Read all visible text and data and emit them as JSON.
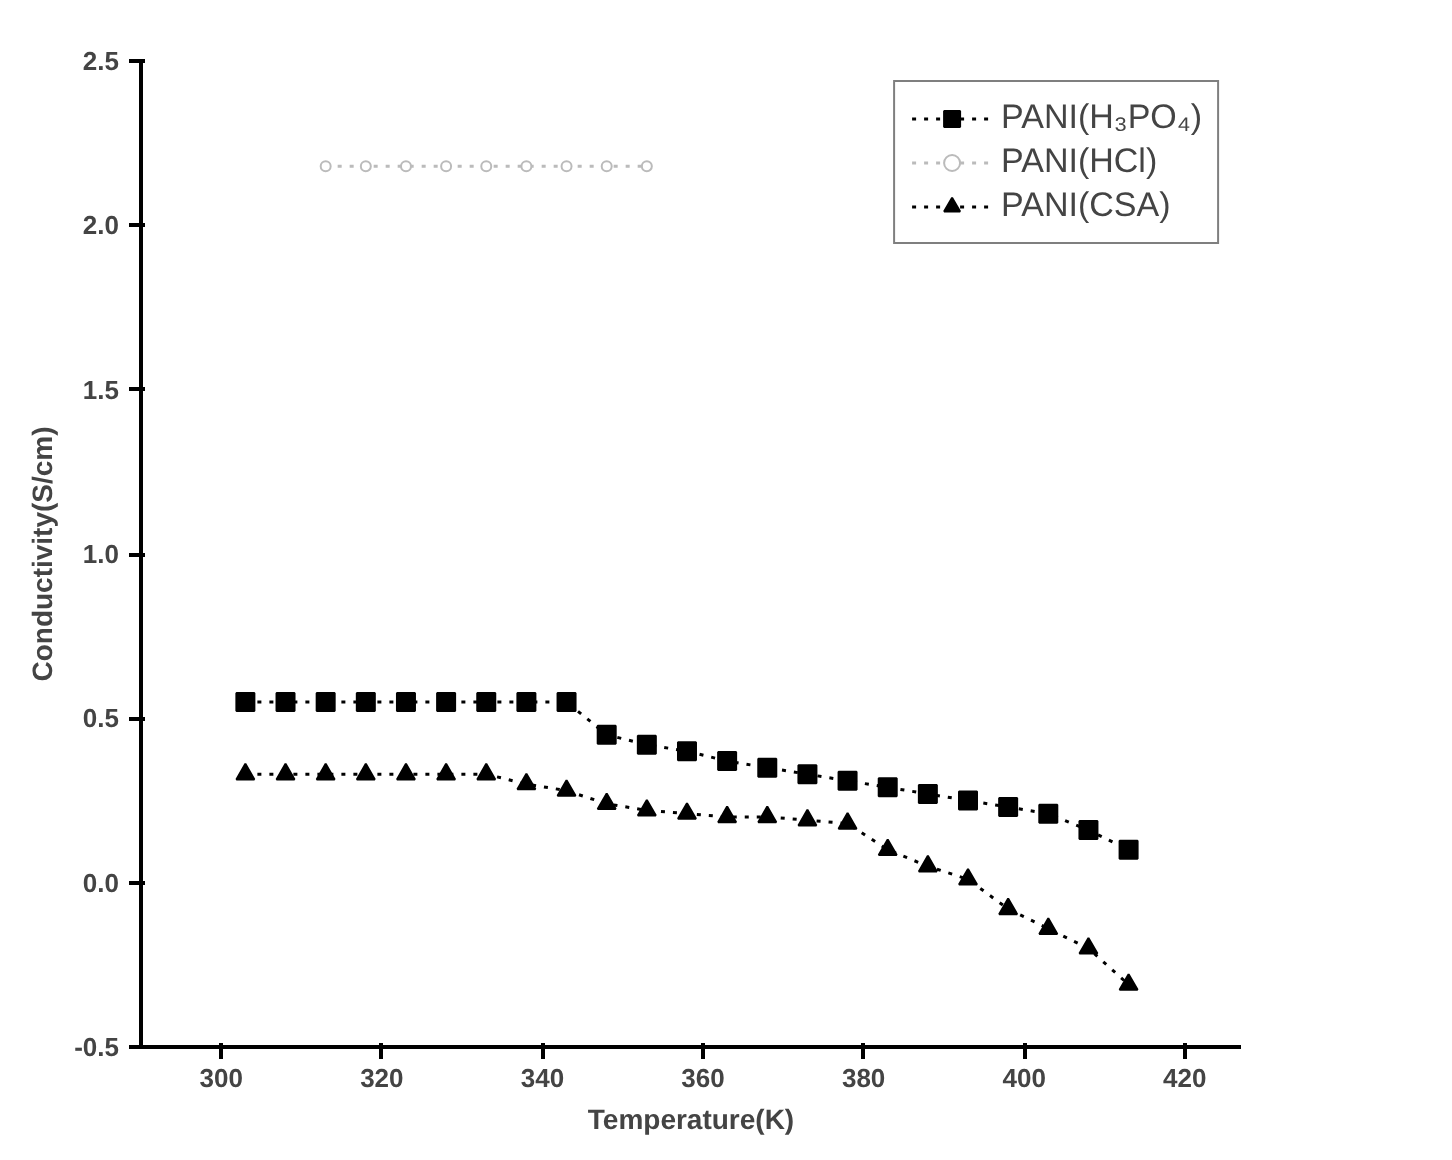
{
  "chart_data": {
    "type": "line",
    "xlabel": "Temperature(K)",
    "ylabel": "Conductivity(S/cm)",
    "xlim": [
      290,
      427
    ],
    "xticks": [
      300,
      320,
      340,
      360,
      380,
      400,
      420
    ],
    "ylim": [
      -0.5,
      2.5
    ],
    "yticks": [
      -0.5,
      {
        "value": 0,
        "label": "0.0"
      },
      0.5,
      {
        "value": 1,
        "label": "1.0"
      },
      1.5,
      {
        "value": 2,
        "label": "2.0"
      },
      2.5
    ],
    "legend": "top right",
    "line_style": "dotted",
    "series": [
      {
        "name": "PANI(H₃PO₄)",
        "color": "#000000",
        "marker": "square",
        "x": [
          303,
          308,
          313,
          318,
          323,
          328,
          333,
          338,
          343,
          348,
          353,
          358,
          363,
          368,
          373,
          378,
          383,
          388,
          393,
          398,
          403,
          408,
          413
        ],
        "values": [
          0.55,
          0.55,
          0.55,
          0.55,
          0.55,
          0.55,
          0.55,
          0.55,
          0.55,
          0.45,
          0.42,
          0.4,
          0.37,
          0.35,
          0.33,
          0.31,
          0.29,
          0.27,
          0.25,
          0.23,
          0.21,
          0.16,
          0.1
        ]
      },
      {
        "name": "PANI(HCl)",
        "color": "#bbbbbb",
        "marker": "circle",
        "x": [
          313,
          318,
          323,
          328,
          333,
          338,
          343,
          348,
          353
        ],
        "values": [
          2.18,
          2.18,
          2.18,
          2.18,
          2.18,
          2.18,
          2.18,
          2.18,
          2.18
        ]
      },
      {
        "name": "PANI(CSA)",
        "color": "#000000",
        "marker": "triangle",
        "x": [
          303,
          308,
          313,
          318,
          323,
          328,
          333,
          338,
          343,
          348,
          353,
          358,
          363,
          368,
          373,
          378,
          383,
          388,
          393,
          398,
          403,
          408,
          413
        ],
        "values": [
          0.33,
          0.33,
          0.33,
          0.33,
          0.33,
          0.33,
          0.33,
          0.3,
          0.28,
          0.24,
          0.22,
          0.21,
          0.2,
          0.2,
          0.19,
          0.18,
          0.1,
          0.05,
          0.01,
          -0.08,
          -0.14,
          -0.2,
          -0.31
        ]
      }
    ]
  }
}
